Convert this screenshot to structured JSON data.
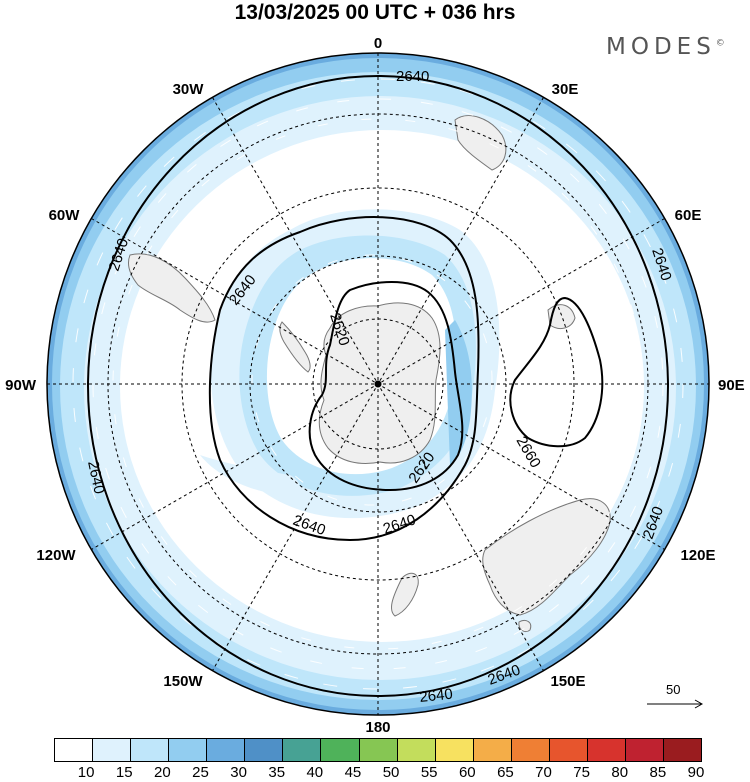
{
  "title": "13/03/2025  00 UTC  + 036 hrs",
  "brand": "MODES",
  "brand_mark": "©",
  "map": {
    "projection": "south-polar-stereographic",
    "lon_labels": {
      "lon_0": "0",
      "lon_30e": "30E",
      "lon_60e": "60E",
      "lon_90e": "90E",
      "lon_120e": "120E",
      "lon_150e": "150E",
      "lon_180": "180",
      "lon_150w": "150W",
      "lon_120w": "120W",
      "lon_90w": "90W",
      "lon_60w": "60W",
      "lon_30w": "30W"
    },
    "contour_labels": {
      "c1": "2640",
      "c2": "2640",
      "c3": "2640",
      "c4": "2640",
      "c5": "2640",
      "c6": "2640",
      "c7": "2640",
      "c8": "2640",
      "c9": "2640",
      "c10": "2640",
      "c11": "2640",
      "c12": "2620",
      "c13": "2620",
      "c14": "2660"
    },
    "ref_vector": "50",
    "colors": {
      "land": "#efefef",
      "coast": "#777777",
      "contour": "#000000",
      "graticule": "#000000",
      "wind": "#ffffff"
    }
  },
  "colorbar": {
    "labels": [
      "10",
      "15",
      "20",
      "25",
      "30",
      "35",
      "40",
      "45",
      "50",
      "55",
      "60",
      "65",
      "70",
      "75",
      "80",
      "85",
      "90"
    ],
    "colors": [
      "#ffffff",
      "#dff2fd",
      "#bfe6fa",
      "#92cdf0",
      "#6aacdf",
      "#4f90c7",
      "#47a294",
      "#4fb25a",
      "#86c653",
      "#c3dd5c",
      "#f7e160",
      "#f4ad48",
      "#ef7f34",
      "#e7552d",
      "#d7332d",
      "#bf2230",
      "#9a1c1f"
    ]
  }
}
